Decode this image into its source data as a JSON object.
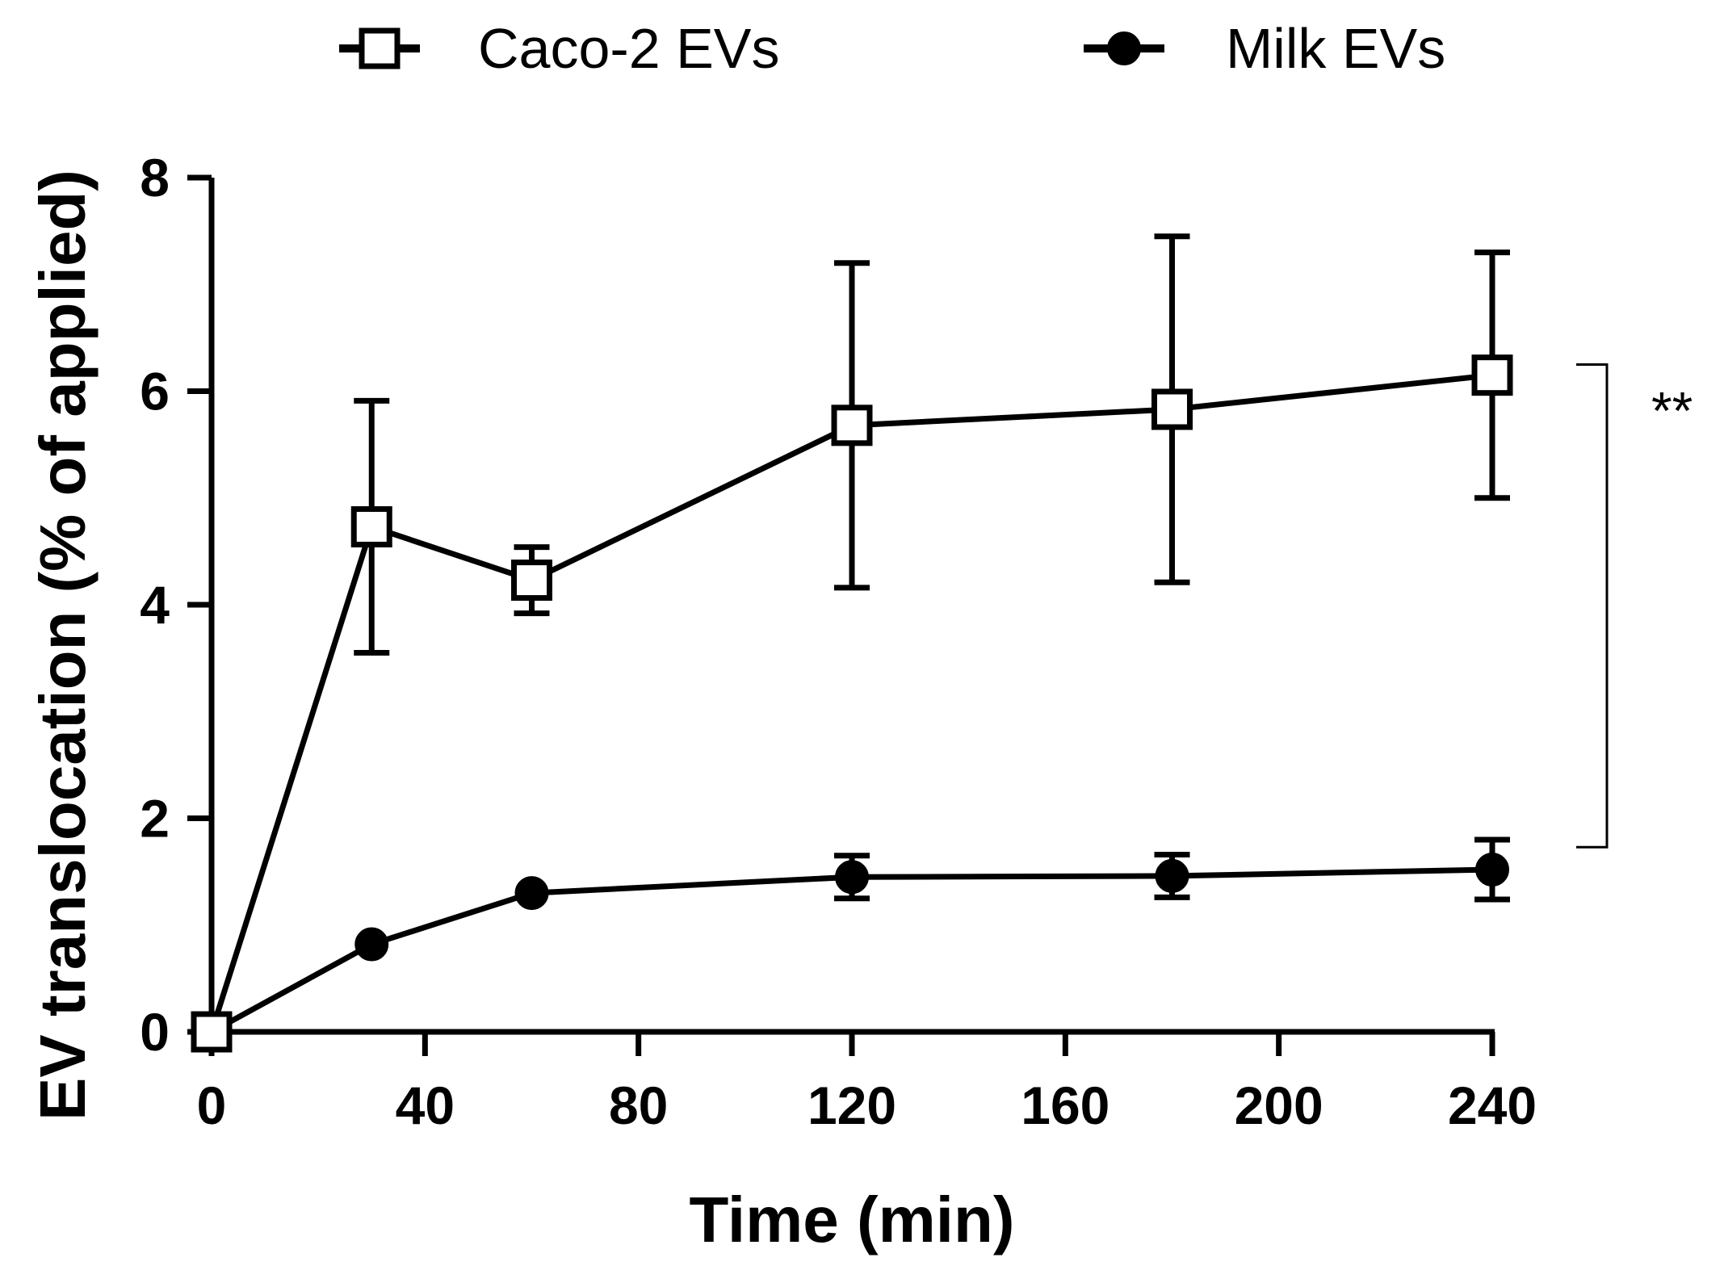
{
  "chart_data": {
    "type": "line",
    "title": "",
    "xlabel": "Time (min)",
    "ylabel": "EV translocation (% of applied)",
    "xlim": [
      0,
      240
    ],
    "ylim": [
      0,
      8
    ],
    "xticks": [
      0,
      40,
      80,
      120,
      160,
      200,
      240
    ],
    "yticks": [
      0,
      2,
      4,
      6,
      8
    ],
    "grid": false,
    "legend_position": "top",
    "series": [
      {
        "name": "Caco-2 EVs",
        "marker": "open-square",
        "x": [
          0,
          30,
          60,
          120,
          180,
          240
        ],
        "values": [
          0,
          4.73,
          4.23,
          5.68,
          5.83,
          6.15
        ],
        "error": [
          0,
          1.18,
          0.31,
          1.52,
          1.62,
          1.15
        ]
      },
      {
        "name": "Milk EVs",
        "marker": "filled-circle",
        "x": [
          0,
          30,
          60,
          120,
          180,
          240
        ],
        "values": [
          0,
          0.82,
          1.3,
          1.45,
          1.46,
          1.52
        ],
        "error": [
          0,
          0,
          0,
          0.2,
          0.2,
          0.28
        ]
      }
    ],
    "annotations": [
      {
        "text": "**",
        "bracket_y_range": [
          1.73,
          6.25
        ]
      }
    ]
  }
}
